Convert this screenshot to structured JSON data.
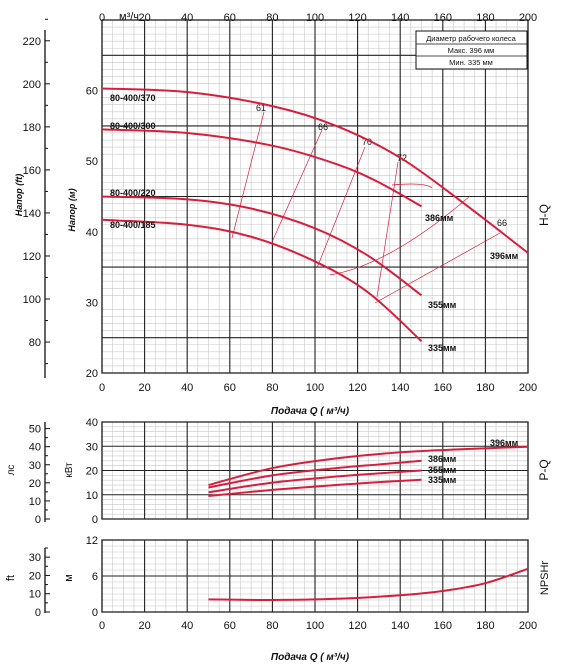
{
  "colors": {
    "curve": "#d81e3c",
    "grid_major": "#222222",
    "grid_minor": "#c8c8c8",
    "text": "#111111"
  },
  "legend_box": {
    "title": "Диаметр рабочего колеса",
    "max": "Макс. 396  мм",
    "min": "Мин.  335  мм"
  },
  "chart_data": [
    {
      "id": "head",
      "type": "line",
      "title": "H-Q",
      "xlabel": "Подача Q ( м³/ч)",
      "xlabel_top": "м³/ч",
      "ylabel_left": "Напор (ft)",
      "ylabel_right": "Напор (м)",
      "xlim": [
        0,
        200
      ],
      "ylim": [
        20,
        70
      ],
      "x_ticks": [
        0,
        20,
        40,
        60,
        80,
        100,
        120,
        140,
        160,
        180,
        200
      ],
      "y_ticks_m": [
        20,
        30,
        40,
        50,
        60
      ],
      "y_ticks_ft": [
        80,
        100,
        120,
        140,
        160,
        180,
        200,
        220
      ],
      "grid": true,
      "series": [
        {
          "name": "80-400/370",
          "end_label": "396мм",
          "x": [
            0,
            40,
            80,
            110,
            140,
            170,
            200
          ],
          "y": [
            60.3,
            59.8,
            57.8,
            55.0,
            50.5,
            44.0,
            37.0
          ]
        },
        {
          "name": "80-400/300",
          "end_label": "386мм",
          "x": [
            0,
            40,
            80,
            110,
            130,
            150
          ],
          "y": [
            54.5,
            54.0,
            52.2,
            49.6,
            47.0,
            43.6
          ]
        },
        {
          "name": "80-400/220",
          "end_label": "355мм",
          "x": [
            0,
            40,
            70,
            100,
            125,
            150
          ],
          "y": [
            45.0,
            44.6,
            43.3,
            40.5,
            36.6,
            31.0
          ]
        },
        {
          "name": "80-400/185",
          "end_label": "335мм",
          "x": [
            0,
            40,
            70,
            100,
            125,
            150
          ],
          "y": [
            41.7,
            41.0,
            39.3,
            35.8,
            31.4,
            24.5
          ]
        }
      ],
      "efficiency_labels": [
        "61",
        "66",
        "70",
        "72",
        "66"
      ]
    },
    {
      "id": "power",
      "type": "line",
      "title": "P-Q",
      "ylabel_left": "лс",
      "ylabel_right": "кВт",
      "xlim": [
        0,
        200
      ],
      "ylim": [
        0,
        40
      ],
      "y_ticks_kw": [
        0,
        10,
        20,
        30,
        40
      ],
      "y_ticks_hp": [
        0,
        10,
        20,
        30,
        40,
        50
      ],
      "grid": true,
      "series": [
        {
          "name": "396мм",
          "x": [
            50,
            80,
            110,
            140,
            170,
            200
          ],
          "y": [
            14.0,
            21.0,
            25.0,
            27.5,
            28.8,
            29.8
          ]
        },
        {
          "name": "386мм",
          "x": [
            50,
            80,
            110,
            130,
            150
          ],
          "y": [
            13.0,
            18.0,
            21.0,
            22.5,
            24.0
          ]
        },
        {
          "name": "355мм",
          "x": [
            50,
            80,
            110,
            130,
            150
          ],
          "y": [
            11.0,
            15.0,
            17.5,
            18.8,
            20.0
          ]
        },
        {
          "name": "335мм",
          "x": [
            50,
            80,
            110,
            130,
            150
          ],
          "y": [
            9.5,
            12.0,
            14.0,
            15.2,
            16.2
          ]
        }
      ]
    },
    {
      "id": "npsh",
      "type": "line",
      "title": "NPSHr",
      "xlabel": "Подача Q ( м³/ч)",
      "ylabel_left": "ft",
      "ylabel_right": "м",
      "xlim": [
        0,
        200
      ],
      "ylim": [
        0,
        12
      ],
      "y_ticks_m": [
        0,
        6,
        12
      ],
      "y_ticks_ft": [
        0,
        10,
        20,
        30
      ],
      "grid": true,
      "series": [
        {
          "x": [
            50,
            80,
            110,
            140,
            160,
            180,
            200
          ],
          "y": [
            2.1,
            2.0,
            2.2,
            2.8,
            3.5,
            4.8,
            7.2
          ]
        }
      ]
    }
  ]
}
